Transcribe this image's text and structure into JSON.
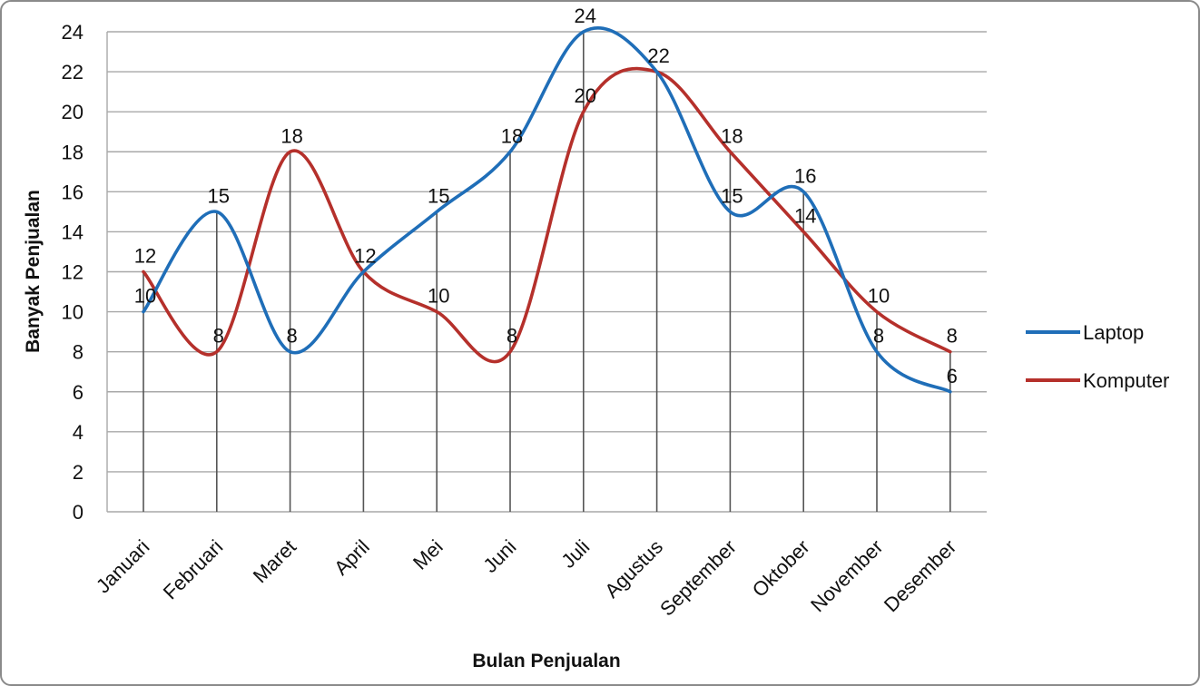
{
  "chart_data": {
    "type": "line",
    "title": "",
    "xlabel": "Bulan Penjualan",
    "ylabel": "Banyak Penjualan",
    "ylim": [
      0,
      24
    ],
    "yticks": [
      "0",
      "2",
      "4",
      "6",
      "8",
      "10",
      "12",
      "14",
      "16",
      "18",
      "20",
      "22",
      "24"
    ],
    "grid": true,
    "smooth": true,
    "drop_lines": true,
    "legend_position": "right",
    "categories": [
      "Januari",
      "Februari",
      "Maret",
      "April",
      "Mei",
      "Juni",
      "Juli",
      "Agustus",
      "September",
      "Oktober",
      "November",
      "Desember"
    ],
    "series": [
      {
        "name": "Laptop",
        "color": "#1f6eb8",
        "values": [
          10,
          15,
          8,
          12,
          15,
          18,
          24,
          22,
          15,
          16,
          8,
          6
        ]
      },
      {
        "name": "Komputer",
        "color": "#b5302b",
        "values": [
          12,
          8,
          18,
          12,
          10,
          8,
          20,
          22,
          18,
          14,
          10,
          8
        ]
      }
    ],
    "data_labels": [
      {
        "text": "12",
        "category": "Januari",
        "y": 12
      },
      {
        "text": "10",
        "category": "Januari",
        "y": 10
      },
      {
        "text": "15",
        "category": "Februari",
        "y": 15
      },
      {
        "text": "8",
        "category": "Februari",
        "y": 8
      },
      {
        "text": "18",
        "category": "Maret",
        "y": 18
      },
      {
        "text": "8",
        "category": "Maret",
        "y": 8
      },
      {
        "text": "12",
        "category": "April",
        "y": 12
      },
      {
        "text": "15",
        "category": "Mei",
        "y": 15
      },
      {
        "text": "10",
        "category": "Mei",
        "y": 10
      },
      {
        "text": "18",
        "category": "Juni",
        "y": 18
      },
      {
        "text": "8",
        "category": "Juni",
        "y": 8
      },
      {
        "text": "24",
        "category": "Juli",
        "y": 24
      },
      {
        "text": "20",
        "category": "Juli",
        "y": 20
      },
      {
        "text": "22",
        "category": "Agustus",
        "y": 22
      },
      {
        "text": "18",
        "category": "September",
        "y": 18
      },
      {
        "text": "15",
        "category": "September",
        "y": 15
      },
      {
        "text": "16",
        "category": "Oktober",
        "y": 16
      },
      {
        "text": "14",
        "category": "Oktober",
        "y": 14
      },
      {
        "text": "10",
        "category": "November",
        "y": 10
      },
      {
        "text": "8",
        "category": "November",
        "y": 8
      },
      {
        "text": "8",
        "category": "Desember",
        "y": 8
      },
      {
        "text": "6",
        "category": "Desember",
        "y": 6
      }
    ]
  }
}
